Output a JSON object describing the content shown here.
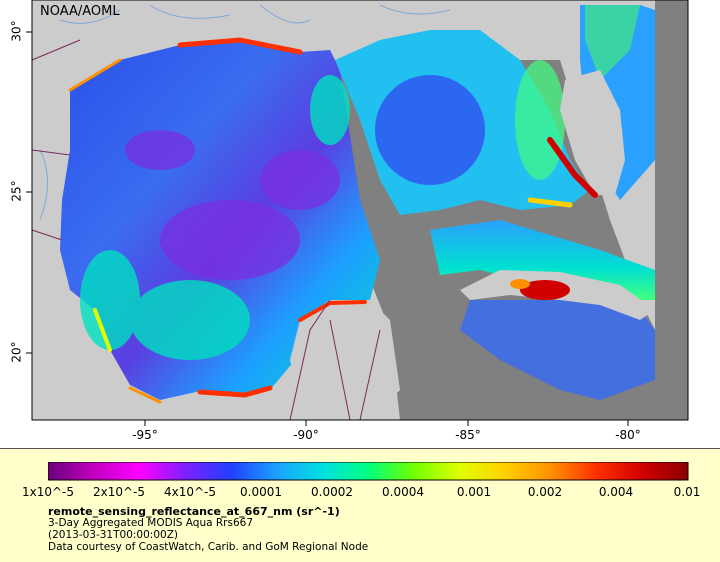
{
  "map": {
    "credit": "NOAA/AOML",
    "lon_ticks": [
      "-95°",
      "-90°",
      "-85°",
      "-80°"
    ],
    "lat_ticks": [
      "30°",
      "25°",
      "20°"
    ],
    "colors": {
      "land": "#cccccc",
      "no_data": "#808080",
      "rivers": "#7fa8d8",
      "borders": "#7b2a5a"
    }
  },
  "colorbar": {
    "labels": [
      "1x10^-5",
      "2x10^-5",
      "4x10^-5",
      "0.0001",
      "0.0002",
      "0.0004",
      "0.001",
      "0.002",
      "0.004",
      "0.01"
    ],
    "colors": [
      "#6a0078",
      "#c000c0",
      "#ff00ff",
      "#8020ff",
      "#2040ff",
      "#1ca0ff",
      "#00e0e0",
      "#00ff80",
      "#70ff00",
      "#e0ff00",
      "#ffd000",
      "#ff9000",
      "#ff3000",
      "#d00000",
      "#8b0000"
    ]
  },
  "legend": {
    "title": "remote_sensing_reflectance_at_667_nm (sr^-1)",
    "line1": "3-Day Aggregated MODIS Aqua Rrs667",
    "line2": "(2013-03-31T00:00:00Z)",
    "line3": "Data courtesy of CoastWatch, Carib. and GoM Regional Node"
  }
}
